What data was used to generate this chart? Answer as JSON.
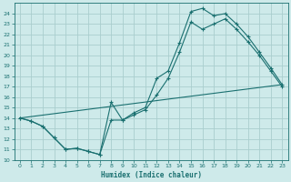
{
  "xlabel": "Humidex (Indice chaleur)",
  "bg_color": "#ceeaea",
  "line_color": "#1a7070",
  "grid_color": "#aacece",
  "xlim": [
    -0.5,
    23.5
  ],
  "ylim": [
    10,
    25
  ],
  "yticks": [
    10,
    11,
    12,
    13,
    14,
    15,
    16,
    17,
    18,
    19,
    20,
    21,
    22,
    23,
    24
  ],
  "xticks": [
    0,
    1,
    2,
    3,
    4,
    5,
    6,
    7,
    8,
    9,
    10,
    11,
    12,
    13,
    14,
    15,
    16,
    17,
    18,
    19,
    20,
    21,
    22,
    23
  ],
  "line1_x": [
    0,
    1,
    2,
    3,
    4,
    5,
    6,
    7,
    8,
    9,
    10,
    11,
    12,
    13,
    14,
    15,
    16,
    17,
    18,
    19,
    20,
    21,
    22,
    23
  ],
  "line1_y": [
    14.0,
    13.7,
    13.2,
    12.1,
    11.0,
    11.1,
    10.8,
    10.5,
    15.5,
    13.8,
    14.5,
    15.0,
    17.8,
    18.5,
    21.2,
    24.2,
    24.5,
    23.8,
    24.0,
    23.0,
    21.8,
    20.3,
    18.8,
    17.2
  ],
  "line2_x": [
    0,
    1,
    2,
    3,
    4,
    5,
    6,
    7,
    8,
    9,
    10,
    11,
    12,
    13,
    14,
    15,
    16,
    17,
    18,
    19,
    20,
    21,
    22,
    23
  ],
  "line2_y": [
    14.0,
    13.7,
    13.2,
    12.1,
    11.0,
    11.1,
    10.8,
    10.5,
    13.8,
    13.8,
    14.3,
    14.8,
    16.2,
    17.8,
    20.3,
    23.2,
    22.5,
    23.0,
    23.5,
    22.5,
    21.3,
    20.0,
    18.5,
    17.0
  ],
  "line3_x": [
    0,
    23
  ],
  "line3_y": [
    14.0,
    17.2
  ]
}
